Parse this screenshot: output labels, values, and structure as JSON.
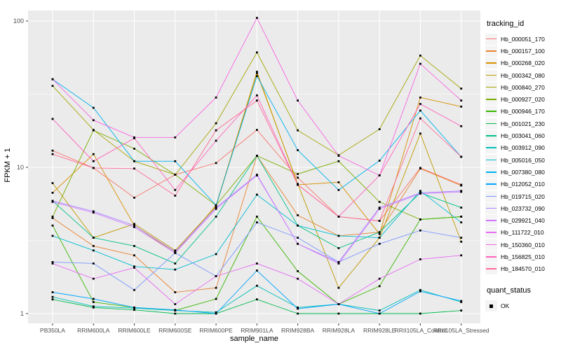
{
  "figure": {
    "y_axis_title": "FPKM + 1",
    "x_axis_title": "sample_name",
    "legend_title": "tracking_id",
    "quant_legend_title": "quant_status",
    "quant_ok_label": "OK",
    "panel_bg": "#EBEBEB",
    "grid_color": "#FFFFFF",
    "tick_text_color": "#4D4D4D",
    "marker_color": "#000000"
  },
  "chart_data": {
    "type": "line",
    "title": "",
    "xlabel": "sample_name",
    "ylabel": "FPKM + 1",
    "y_scale": "log10",
    "y_ticks": [
      1,
      10,
      100
    ],
    "y_minor_ticks": [
      3.162,
      31.62
    ],
    "ylim": [
      0.85,
      120
    ],
    "grid": true,
    "legend_position": "right",
    "legend_title": "tracking_id",
    "marker": "filled-square",
    "quant_status": {
      "title": "quant_status",
      "items": [
        "OK"
      ]
    },
    "categories": [
      "PB350LA",
      "RRIM600LA",
      "RRIM600LE",
      "RRIM600SE",
      "RRIM600PE",
      "RRIM901LA",
      "RRIM928BA",
      "RRIM928LA",
      "RRIM928LE",
      "RRII105LA_Control",
      "RRII105LA_Stressed"
    ],
    "series": [
      {
        "name": "Hb_000051_170",
        "color": "#F8766D",
        "values": [
          13,
          9.9,
          6.2,
          8.9,
          10.7,
          18,
          8.5,
          4.6,
          4.3,
          9.9,
          7.6
        ]
      },
      {
        "name": "Hb_000157_100",
        "color": "#EA8331",
        "values": [
          4.5,
          2.9,
          2.5,
          1.4,
          1.5,
          12,
          4.7,
          3.4,
          3.6,
          9.8,
          7.5
        ]
      },
      {
        "name": "Hb_000268_020",
        "color": "#D89000",
        "values": [
          6.7,
          12.3,
          4.0,
          2.6,
          5.5,
          45,
          7.6,
          7.9,
          3.5,
          30,
          26
        ]
      },
      {
        "name": "Hb_000342_080",
        "color": "#C09B00",
        "values": [
          7.8,
          3.3,
          4.1,
          2.7,
          5.4,
          44,
          7.7,
          1.5,
          3.3,
          17,
          3.1
        ]
      },
      {
        "name": "Hb_000840_270",
        "color": "#A3A500",
        "values": [
          36,
          18,
          11,
          8.9,
          20,
          61,
          17.9,
          12.1,
          18.2,
          58,
          34.5
        ]
      },
      {
        "name": "Hb_000927_020",
        "color": "#7CAE00",
        "values": [
          4.6,
          17.9,
          13.4,
          8.9,
          5.5,
          12,
          9.0,
          11.0,
          5.8,
          4.4,
          4.6
        ]
      },
      {
        "name": "Hb_000946_170",
        "color": "#39B600",
        "values": [
          4.0,
          1.2,
          1.1,
          1.05,
          1.26,
          4.6,
          1.95,
          1.16,
          1.54,
          4.4,
          4.6
        ]
      },
      {
        "name": "Hb_001021_230",
        "color": "#00BB4E",
        "values": [
          1.25,
          1.1,
          1.06,
          1.0,
          1.0,
          1.25,
          1.0,
          1.0,
          1.0,
          1.0,
          1.05
        ]
      },
      {
        "name": "Hb_003041_060",
        "color": "#00C087",
        "values": [
          5.9,
          3.3,
          2.9,
          2.2,
          4.6,
          12,
          4.0,
          2.8,
          3.6,
          6.7,
          5.3
        ]
      },
      {
        "name": "Hb_003912_090",
        "color": "#00C0B8",
        "values": [
          1.3,
          1.12,
          1.09,
          1.05,
          1.02,
          1.55,
          1.1,
          1.16,
          1.05,
          1.45,
          1.2
        ]
      },
      {
        "name": "Hb_005016_050",
        "color": "#00BDD0",
        "values": [
          3.4,
          2.7,
          2.1,
          2.0,
          2.55,
          6.5,
          4.0,
          3.4,
          3.3,
          6.9,
          4.2
        ]
      },
      {
        "name": "Hb_007380_080",
        "color": "#00B4EF",
        "values": [
          40,
          25.5,
          11,
          11,
          5.5,
          42,
          13.1,
          7.0,
          11.1,
          24.4,
          11.8
        ]
      },
      {
        "name": "Hb_012052_010",
        "color": "#00A5FF",
        "values": [
          1.4,
          1.26,
          1.1,
          1.06,
          1.0,
          1.97,
          1.08,
          1.16,
          1.0,
          1.42,
          1.22
        ]
      },
      {
        "name": "Hb_019715_020",
        "color": "#7997FF",
        "values": [
          2.25,
          2.2,
          1.45,
          2.6,
          1.8,
          4.2,
          3.3,
          2.25,
          3.0,
          3.7,
          3.3
        ]
      },
      {
        "name": "Hb_023732_090",
        "color": "#AC88FF",
        "values": [
          5.9,
          5.0,
          4.0,
          2.65,
          5.3,
          8.9,
          3.0,
          2.25,
          5.3,
          6.7,
          6.9
        ]
      },
      {
        "name": "Hb_029921_040",
        "color": "#CF78FF",
        "values": [
          5.8,
          4.9,
          3.9,
          2.6,
          5.2,
          8.8,
          3.0,
          2.2,
          5.2,
          6.6,
          6.8
        ]
      },
      {
        "name": "Hb_111722_010",
        "color": "#E76BF3",
        "values": [
          2.2,
          1.73,
          2.06,
          1.16,
          1.8,
          2.2,
          1.73,
          1.16,
          1.73,
          2.35,
          2.5
        ]
      },
      {
        "name": "Hb_150360_010",
        "color": "#F763E0",
        "values": [
          40,
          21,
          16,
          16,
          30,
          105,
          28.6,
          12,
          8.8,
          51,
          28.6
        ]
      },
      {
        "name": "Hb_156825_010",
        "color": "#FF62BC",
        "values": [
          21.4,
          11,
          15.8,
          7.0,
          15.2,
          31,
          7.6,
          4.6,
          8.8,
          27.1,
          19.1
        ]
      },
      {
        "name": "Hb_184570_010",
        "color": "#FF6A98",
        "values": [
          12.3,
          9.9,
          9.8,
          6.4,
          17.9,
          28.6,
          7.6,
          4.6,
          4.3,
          21.6,
          11.8
        ]
      }
    ]
  }
}
